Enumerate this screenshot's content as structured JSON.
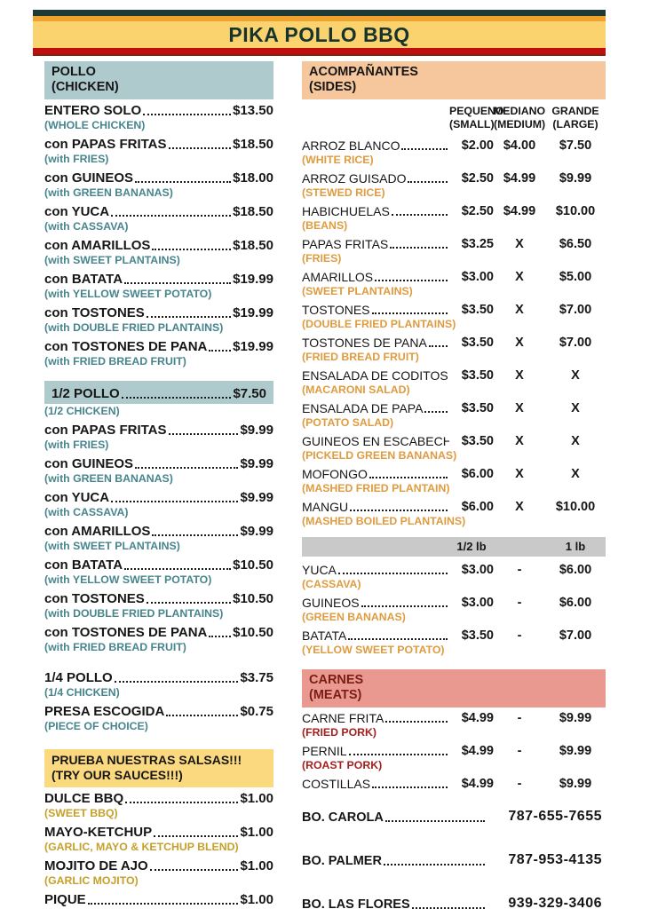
{
  "header": {
    "title": "PIKA POLLO BBQ"
  },
  "colors": {
    "bar_teal": "#1e3a36",
    "bar_orange": "#efa22e",
    "bar_yellow": "#fbd36e",
    "bar_red": "#c00d0d",
    "bar_red_edge": "#7e2310",
    "title_text": "#17332e",
    "pollo_band": "#aecacd",
    "teal_sub": "#47858e",
    "sides_band": "#f6c69c",
    "orange_sub": "#df9b3f",
    "weight_band": "#c9c9c9",
    "meats_band": "#e9998f",
    "meats_title": "#7b1d15",
    "red_sub": "#a32020",
    "sauces_band": "#fbd97e",
    "gold_sub": "#c6a02a",
    "text": "#161616"
  },
  "left": {
    "pollo": {
      "title": "POLLO",
      "subtitle": "(CHICKEN)",
      "items": [
        {
          "name": "ENTERO SOLO",
          "price": "$13.50",
          "sub": "(WHOLE CHICKEN)"
        },
        {
          "name": "con PAPAS FRITAS",
          "price": "$18.50",
          "sub": "(with FRIES)"
        },
        {
          "name": "con GUINEOS",
          "price": "$18.00",
          "sub": "(with GREEN BANANAS)"
        },
        {
          "name": "con YUCA",
          "price": "$18.50",
          "sub": "(with CASSAVA)"
        },
        {
          "name": "con AMARILLOS",
          "price": "$18.50",
          "sub": "(with SWEET PLANTAINS)"
        },
        {
          "name": "con BATATA",
          "price": "$19.99",
          "sub": "(with YELLOW SWEET POTATO)"
        },
        {
          "name": "con TOSTONES",
          "price": "$19.99",
          "sub": "(with DOUBLE FRIED PLANTAINS)"
        },
        {
          "name": "con TOSTONES DE PANA",
          "price": "$19.99",
          "sub": "(with FRIED BREAD FRUIT)"
        }
      ]
    },
    "half_pollo": {
      "header_item": {
        "name": "1/2 POLLO",
        "price": "$7.50",
        "sub": "(1/2 CHICKEN)"
      },
      "items": [
        {
          "name": "con PAPAS FRITAS",
          "price": "$9.99",
          "sub": "(with FRIES)"
        },
        {
          "name": "con GUINEOS",
          "price": "$9.99",
          "sub": "(with GREEN BANANAS)"
        },
        {
          "name": "con YUCA",
          "price": "$9.99",
          "sub": "(with CASSAVA)"
        },
        {
          "name": "con AMARILLOS",
          "price": "$9.99",
          "sub": "(with SWEET PLANTAINS)"
        },
        {
          "name": "con BATATA",
          "price": "$10.50",
          "sub": "(with YELLOW SWEET POTATO)"
        },
        {
          "name": "con TOSTONES",
          "price": "$10.50",
          "sub": "(with DOUBLE FRIED PLANTAINS)"
        },
        {
          "name": "con TOSTONES DE PANA",
          "price": "$10.50",
          "sub": "(with FRIED BREAD FRUIT)"
        }
      ]
    },
    "quarter": {
      "items": [
        {
          "name": "1/4 POLLO",
          "price": "$3.75",
          "sub": "(1/4 CHICKEN)"
        },
        {
          "name": "PRESA ESCOGIDA",
          "price": "$0.75",
          "sub": "(PIECE OF CHOICE)"
        }
      ]
    },
    "sauces": {
      "title": "PRUEBA NUESTRAS SALSAS!!!",
      "subtitle": "(TRY OUR SAUCES!!!)",
      "items": [
        {
          "name": "DULCE BBQ",
          "price": "$1.00",
          "sub": "(SWEET BBQ)"
        },
        {
          "name": "MAYO-KETCHUP",
          "price": "$1.00",
          "sub": "(GARLIC, MAYO & KETCHUP BLEND)"
        },
        {
          "name": "MOJITO DE AJO",
          "price": "$1.00",
          "sub": "(GARLIC MOJITO)"
        },
        {
          "name": "PIQUE",
          "price": "$1.00",
          "sub": "(HOT SAUCE)"
        }
      ]
    }
  },
  "right": {
    "sides": {
      "title": "ACOMPAÑANTES",
      "subtitle": "(SIDES)",
      "size_headers": [
        {
          "line1": "PEQUENO",
          "line2": "(SMALL)"
        },
        {
          "line1": "MEDIANO",
          "line2": "(MEDIUM)"
        },
        {
          "line1": "GRANDE",
          "line2": "(LARGE)"
        }
      ],
      "items": [
        {
          "name": "ARROZ BLANCO",
          "sub": "(WHITE RICE)",
          "p1": "$2.00",
          "p2": "$4.00",
          "p3": "$7.50"
        },
        {
          "name": "ARROZ GUISADO",
          "sub": "(STEWED RICE)",
          "p1": "$2.50",
          "p2": "$4.99",
          "p3": "$9.99"
        },
        {
          "name": "HABICHUELAS",
          "sub": "(BEANS)",
          "p1": "$2.50",
          "p2": "$4.99",
          "p3": "$10.00"
        },
        {
          "name": "PAPAS FRITAS",
          "sub": "(FRIES)",
          "p1": "$3.25",
          "p2": "X",
          "p3": "$6.50"
        },
        {
          "name": "AMARILLOS",
          "sub": "(SWEET PLANTAINS)",
          "p1": "$3.00",
          "p2": "X",
          "p3": "$5.00"
        },
        {
          "name": "TOSTONES",
          "sub": "(DOUBLE FRIED PLANTAINS)",
          "p1": "$3.50",
          "p2": "X",
          "p3": "$7.00"
        },
        {
          "name": "TOSTONES DE PANA",
          "sub": "(FRIED BREAD FRUIT)",
          "p1": "$3.50",
          "p2": "X",
          "p3": "$7.00"
        },
        {
          "name": "ENSALADA DE CODITOS",
          "sub": "(MACARONI SALAD)",
          "p1": "$3.50",
          "p2": "X",
          "p3": "X"
        },
        {
          "name": "ENSALADA DE PAPA",
          "sub": "(POTATO SALAD)",
          "p1": "$3.50",
          "p2": "X",
          "p3": "X"
        },
        {
          "name": "GUINEOS EN ESCABECHE",
          "sub": "(PICKELD GREEN BANANAS)",
          "p1": "$3.50",
          "p2": "X",
          "p3": "X"
        },
        {
          "name": "MOFONGO",
          "sub": "(MASHED FRIED PLANTAIN)",
          "p1": "$6.00",
          "p2": "X",
          "p3": "X"
        },
        {
          "name": "MANGU",
          "sub": "(MASHED BOILED PLANTAINS)",
          "p1": "$6.00",
          "p2": "X",
          "p3": "$10.00"
        }
      ]
    },
    "by_weight": {
      "col1": "1/2 lb",
      "col2": "1 lb",
      "items": [
        {
          "name": "YUCA",
          "sub": "(CASSAVA)",
          "p1": "$3.00",
          "p2": "-",
          "p3": "$6.00"
        },
        {
          "name": "GUINEOS",
          "sub": "(GREEN BANANAS)",
          "p1": "$3.00",
          "p2": "-",
          "p3": "$6.00"
        },
        {
          "name": "BATATA",
          "sub": "(YELLOW SWEET POTATO)",
          "p1": "$3.50",
          "p2": "-",
          "p3": "$7.00"
        }
      ]
    },
    "meats": {
      "title": "CARNES",
      "subtitle": "(MEATS)",
      "items": [
        {
          "name": "CARNE FRITA",
          "sub": "(FRIED PORK)",
          "p1": "$4.99",
          "p2": "-",
          "p3": "$9.99"
        },
        {
          "name": "PERNIL",
          "sub": "(ROAST PORK)",
          "p1": "$4.99",
          "p2": "-",
          "p3": "$9.99"
        },
        {
          "name": "COSTILLAS",
          "sub": "",
          "p1": "$4.99",
          "p2": "-",
          "p3": "$9.99"
        }
      ]
    },
    "phones": [
      {
        "name": "BO. CAROLA",
        "number": "787-655-7655"
      },
      {
        "name": "BO. PALMER",
        "number": "787-953-4135"
      },
      {
        "name": "BO. LAS FLORES",
        "number": "939-329-3406"
      }
    ]
  }
}
